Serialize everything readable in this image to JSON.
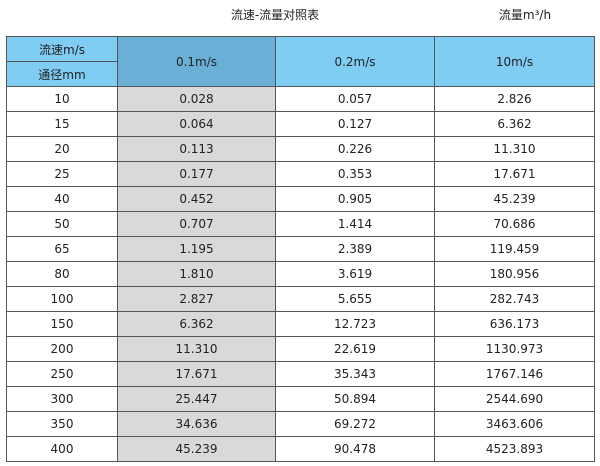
{
  "title": "流速-流量对照表",
  "unit": "流量m³/h",
  "header": {
    "speed_label": "流速m/s",
    "diameter_label": "通径mm",
    "columns": [
      "0.1m/s",
      "0.2m/s",
      "10m/s"
    ]
  },
  "colors": {
    "header": "#7fcdf3",
    "highlight_header": "#6ab0d6",
    "highlight_column": "#d9d9d9"
  },
  "rows": [
    [
      "10",
      "0.028",
      "0.057",
      "2.826"
    ],
    [
      "15",
      "0.064",
      "0.127",
      "6.362"
    ],
    [
      "20",
      "0.113",
      "0.226",
      "11.310"
    ],
    [
      "25",
      "0.177",
      "0.353",
      "17.671"
    ],
    [
      "40",
      "0.452",
      "0.905",
      "45.239"
    ],
    [
      "50",
      "0.707",
      "1.414",
      "70.686"
    ],
    [
      "65",
      "1.195",
      "2.389",
      "119.459"
    ],
    [
      "80",
      "1.810",
      "3.619",
      "180.956"
    ],
    [
      "100",
      "2.827",
      "5.655",
      "282.743"
    ],
    [
      "150",
      "6.362",
      "12.723",
      "636.173"
    ],
    [
      "200",
      "11.310",
      "22.619",
      "1130.973"
    ],
    [
      "250",
      "17.671",
      "35.343",
      "1767.146"
    ],
    [
      "300",
      "25.447",
      "50.894",
      "2544.690"
    ],
    [
      "350",
      "34.636",
      "69.272",
      "3463.606"
    ],
    [
      "400",
      "45.239",
      "90.478",
      "4523.893"
    ]
  ]
}
